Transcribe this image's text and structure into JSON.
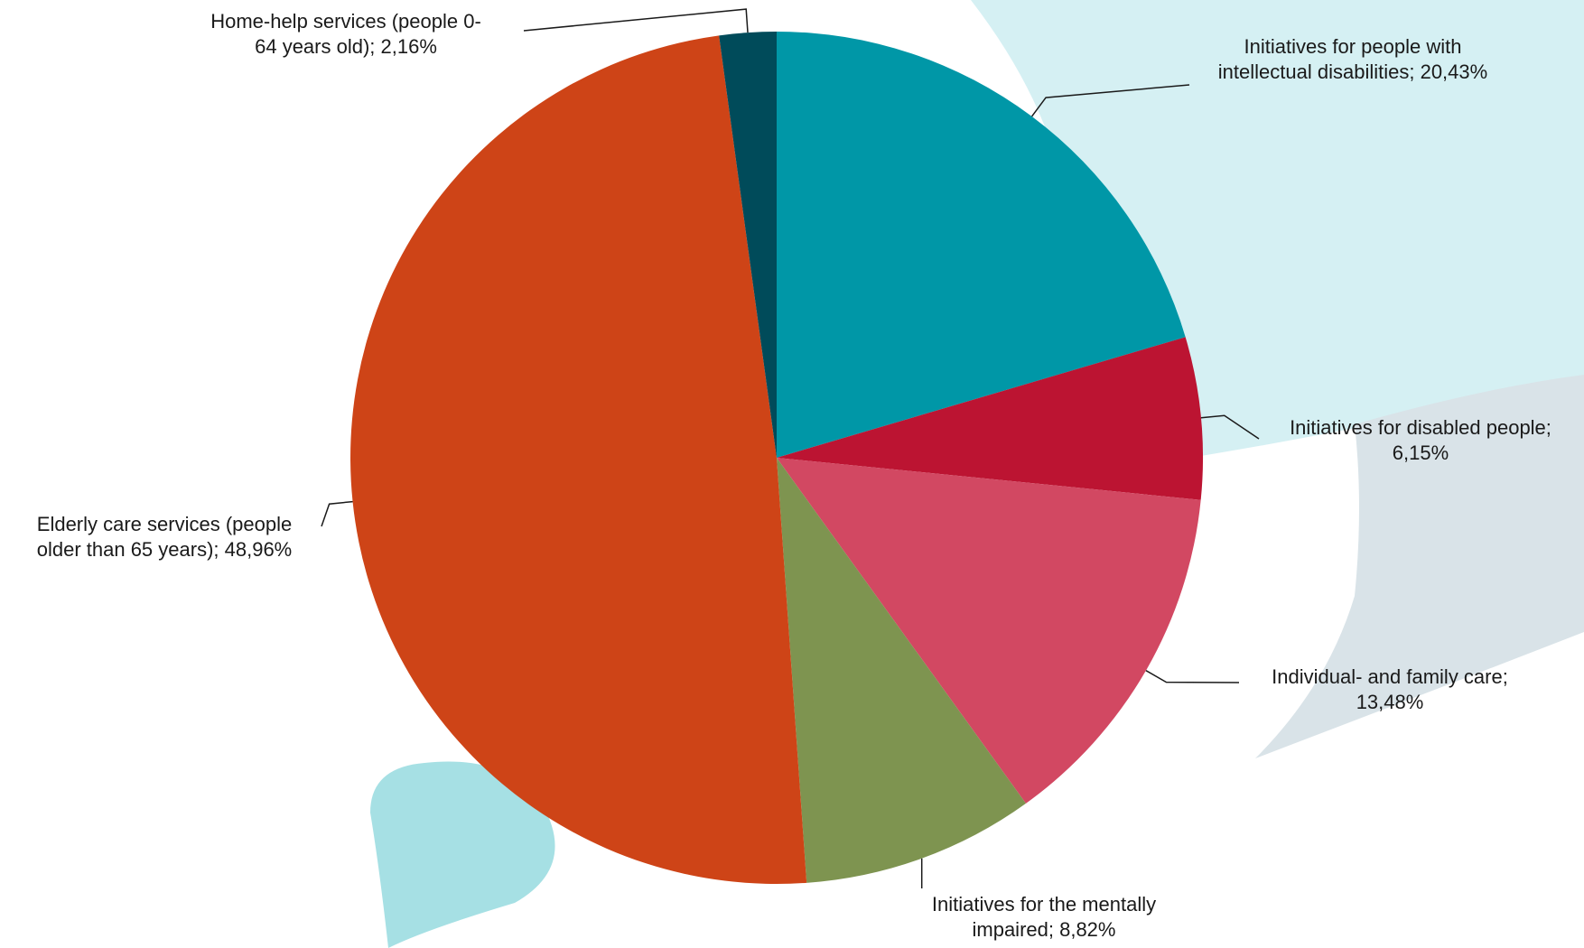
{
  "chart_data": {
    "type": "pie",
    "start_angle_deg": 0,
    "direction": "clockwise",
    "slices": [
      {
        "label_lines": [
          "Initiatives for people with",
          "intellectual disabilities; 20,43%"
        ],
        "name": "Initiatives for people with intellectual disabilities",
        "value": 20.43,
        "color": "#0097a7"
      },
      {
        "label_lines": [
          "Initiatives for disabled people;",
          "6,15%"
        ],
        "name": "Initiatives for disabled people",
        "value": 6.15,
        "color": "#bc1432"
      },
      {
        "label_lines": [
          "Individual- and family care;",
          "13,48%"
        ],
        "name": "Individual- and family care",
        "value": 13.48,
        "color": "#d24862"
      },
      {
        "label_lines": [
          "Initiatives for the mentally",
          "impaired; 8,82%"
        ],
        "name": "Initiatives for the mentally impaired",
        "value": 8.82,
        "color": "#7e9450"
      },
      {
        "label_lines": [
          "Elderly care services (people",
          "older than 65 years); 48,96%"
        ],
        "name": "Elderly care services (people older than 65 years)",
        "value": 48.96,
        "color": "#ce4417"
      },
      {
        "label_lines": [
          "Home-help services (people 0-",
          "64 years old); 2,16%"
        ],
        "name": "Home-help services (people 0-64 years old)",
        "value": 2.16,
        "color": "#004b5a"
      }
    ],
    "legend": "none",
    "background_colors": {
      "bubble_light": "#d5f0f3",
      "bubble_teal": "#a6e0e4",
      "bubble_gray": "#d9e3e8"
    }
  }
}
